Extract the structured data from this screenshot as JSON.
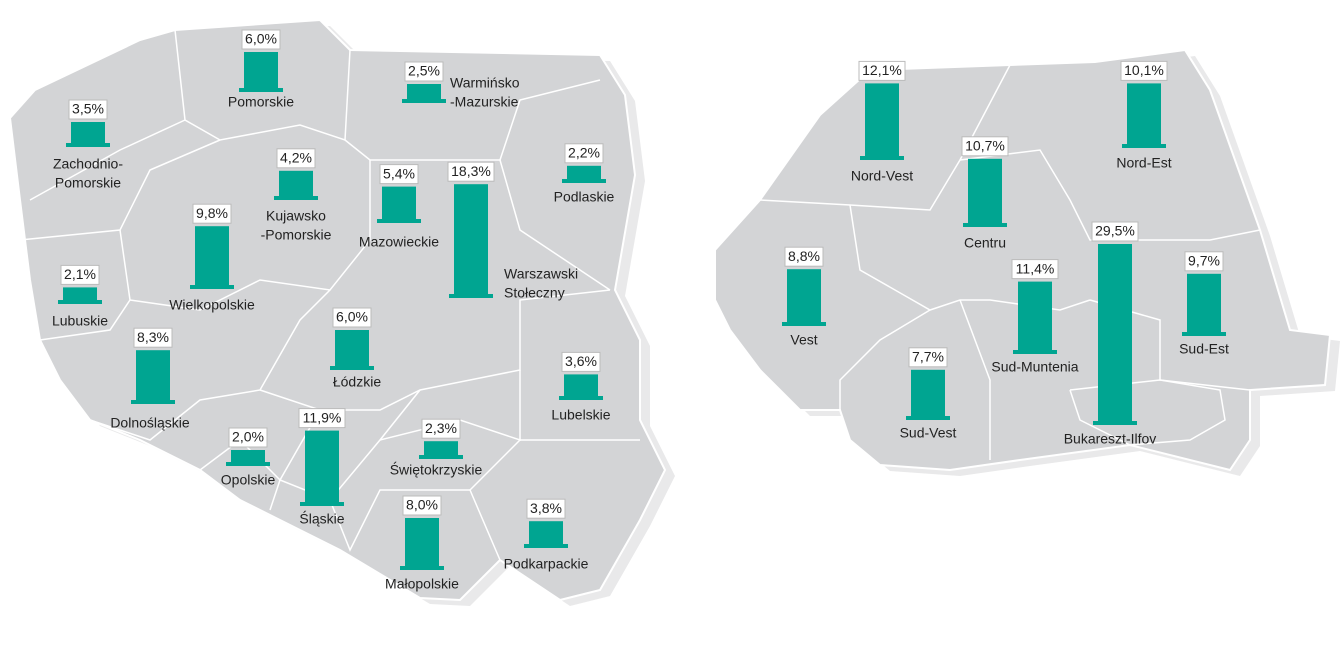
{
  "maps": [
    {
      "regions": [
        {
          "name": [
            "Pomorskie"
          ],
          "value": 6.0,
          "value_label": "6,0%"
        },
        {
          "name": [
            "Warmińsko",
            "-Mazurskie"
          ],
          "value": 2.5,
          "value_label": "2,5%"
        },
        {
          "name": [
            "Zachodnio-",
            "Pomorskie"
          ],
          "value": 3.5,
          "value_label": "3,5%"
        },
        {
          "name": [
            "Podlaskie"
          ],
          "value": 2.2,
          "value_label": "2,2%"
        },
        {
          "name": [
            "Kujawsko",
            "-Pomorskie"
          ],
          "value": 4.2,
          "value_label": "4,2%"
        },
        {
          "name": [
            "Mazowieckie"
          ],
          "value": 5.4,
          "value_label": "5,4%"
        },
        {
          "name": [
            "Warszawski",
            "Stołeczny"
          ],
          "value": 18.3,
          "value_label": "18,3%"
        },
        {
          "name": [
            "Wielkopolskie"
          ],
          "value": 9.8,
          "value_label": "9,8%"
        },
        {
          "name": [
            "Lubuskie"
          ],
          "value": 2.1,
          "value_label": "2,1%"
        },
        {
          "name": [
            "Łódzkie"
          ],
          "value": 6.0,
          "value_label": "6,0%"
        },
        {
          "name": [
            "Dolnośląskie"
          ],
          "value": 8.3,
          "value_label": "8,3%"
        },
        {
          "name": [
            "Lubelskie"
          ],
          "value": 3.6,
          "value_label": "3,6%"
        },
        {
          "name": [
            "Opolskie"
          ],
          "value": 2.0,
          "value_label": "2,0%"
        },
        {
          "name": [
            "Śląskie"
          ],
          "value": 11.9,
          "value_label": "11,9%"
        },
        {
          "name": [
            "Świętokrzyskie"
          ],
          "value": 2.3,
          "value_label": "2,3%"
        },
        {
          "name": [
            "Małopolskie"
          ],
          "value": 8.0,
          "value_label": "8,0%"
        },
        {
          "name": [
            "Podkarpackie"
          ],
          "value": 3.8,
          "value_label": "3,8%"
        }
      ]
    },
    {
      "regions": [
        {
          "name": [
            "Nord-Vest"
          ],
          "value": 12.1,
          "value_label": "12,1%"
        },
        {
          "name": [
            "Nord-Est"
          ],
          "value": 10.1,
          "value_label": "10,1%"
        },
        {
          "name": [
            "Centru"
          ],
          "value": 10.7,
          "value_label": "10,7%"
        },
        {
          "name": [
            "Vest"
          ],
          "value": 8.8,
          "value_label": "8,8%"
        },
        {
          "name": [
            "Sud-Muntenia"
          ],
          "value": 11.4,
          "value_label": "11,4%"
        },
        {
          "name": [
            "Sud-Est"
          ],
          "value": 9.7,
          "value_label": "9,7%"
        },
        {
          "name": [
            "Sud-Vest"
          ],
          "value": 7.7,
          "value_label": "7,7%"
        },
        {
          "name": [
            "Bukareszt-Ilfov"
          ],
          "value": 29.5,
          "value_label": "29,5%"
        }
      ]
    }
  ],
  "color": "#00a591"
}
